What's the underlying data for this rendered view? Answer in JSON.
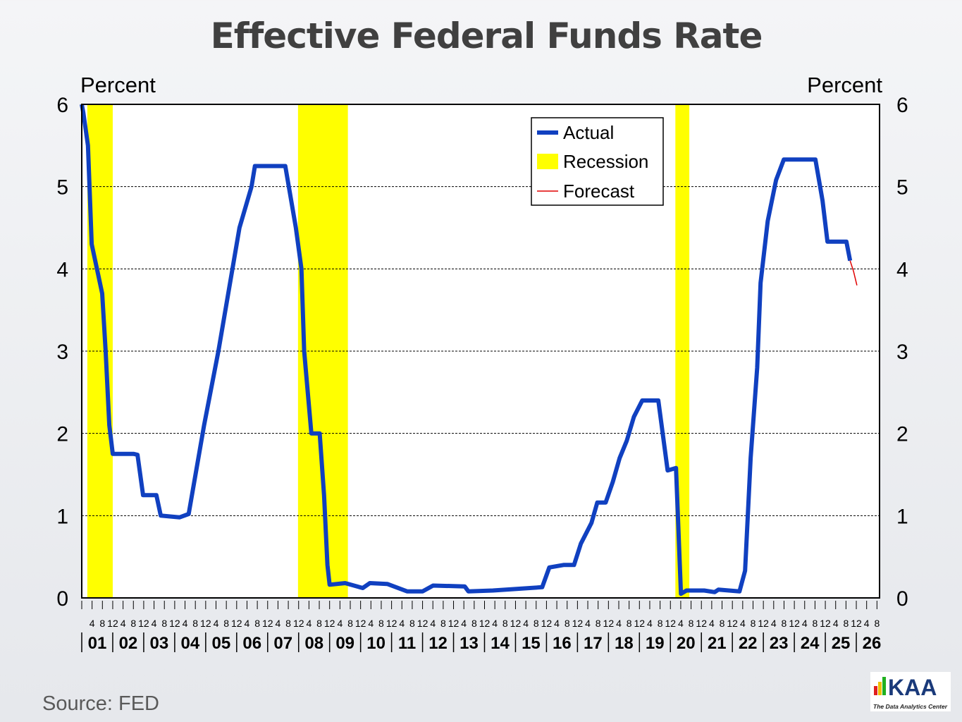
{
  "chart_data": {
    "type": "line",
    "title": "Effective Federal Funds Rate",
    "ylabel_left": "Percent",
    "ylabel_right": "Percent",
    "ylim": [
      0,
      6
    ],
    "yticks": [
      0,
      1,
      2,
      3,
      4,
      5,
      6
    ],
    "xlim": [
      2001.0,
      2026.75
    ],
    "month_ticks": [
      "4",
      "8",
      "12"
    ],
    "year_labels": [
      "01",
      "02",
      "03",
      "04",
      "05",
      "06",
      "07",
      "08",
      "09",
      "10",
      "11",
      "12",
      "13",
      "14",
      "15",
      "16",
      "17",
      "18",
      "19",
      "20",
      "21",
      "22",
      "23",
      "24",
      "25",
      "26"
    ],
    "grid": "horizontal dashed",
    "legend": {
      "placement": "top-center",
      "entries": [
        "Actual",
        "Recession",
        "Forecast"
      ]
    },
    "colors": {
      "actual": "#1040c0",
      "recession": "#ffff00",
      "forecast": "#e00000"
    },
    "recessions": [
      [
        2001.18,
        2002.0
      ],
      [
        2007.98,
        2009.59
      ],
      [
        2020.16,
        2020.61
      ]
    ],
    "actual": [
      [
        2001.0,
        6.0
      ],
      [
        2001.05,
        5.9
      ],
      [
        2001.2,
        5.5
      ],
      [
        2001.32,
        4.3
      ],
      [
        2001.66,
        3.7
      ],
      [
        2001.77,
        3.0
      ],
      [
        2001.89,
        2.1
      ],
      [
        2002.0,
        1.75
      ],
      [
        2002.68,
        1.75
      ],
      [
        2002.8,
        1.74
      ],
      [
        2002.98,
        1.25
      ],
      [
        2003.41,
        1.25
      ],
      [
        2003.55,
        1.0
      ],
      [
        2004.16,
        0.98
      ],
      [
        2004.45,
        1.02
      ],
      [
        2004.95,
        2.1
      ],
      [
        2005.41,
        3.0
      ],
      [
        2006.09,
        4.5
      ],
      [
        2006.48,
        5.0
      ],
      [
        2006.59,
        5.25
      ],
      [
        2007.57,
        5.25
      ],
      [
        2007.91,
        4.5
      ],
      [
        2008.09,
        4.0
      ],
      [
        2008.18,
        3.0
      ],
      [
        2008.41,
        2.0
      ],
      [
        2008.68,
        2.0
      ],
      [
        2008.82,
        1.25
      ],
      [
        2008.93,
        0.4
      ],
      [
        2009.0,
        0.16
      ],
      [
        2009.5,
        0.18
      ],
      [
        2010.07,
        0.12
      ],
      [
        2010.3,
        0.18
      ],
      [
        2010.86,
        0.17
      ],
      [
        2011.5,
        0.08
      ],
      [
        2012.0,
        0.08
      ],
      [
        2012.34,
        0.15
      ],
      [
        2013.36,
        0.14
      ],
      [
        2013.48,
        0.08
      ],
      [
        2014.27,
        0.09
      ],
      [
        2015.86,
        0.13
      ],
      [
        2016.09,
        0.37
      ],
      [
        2016.55,
        0.4
      ],
      [
        2016.89,
        0.4
      ],
      [
        2017.11,
        0.66
      ],
      [
        2017.45,
        0.91
      ],
      [
        2017.64,
        1.16
      ],
      [
        2017.91,
        1.16
      ],
      [
        2018.14,
        1.41
      ],
      [
        2018.36,
        1.7
      ],
      [
        2018.59,
        1.91
      ],
      [
        2018.82,
        2.2
      ],
      [
        2019.09,
        2.4
      ],
      [
        2019.61,
        2.4
      ],
      [
        2019.91,
        1.55
      ],
      [
        2020.18,
        1.58
      ],
      [
        2020.34,
        0.05
      ],
      [
        2020.52,
        0.09
      ],
      [
        2021.09,
        0.09
      ],
      [
        2021.43,
        0.07
      ],
      [
        2021.55,
        0.1
      ],
      [
        2022.23,
        0.08
      ],
      [
        2022.41,
        0.33
      ],
      [
        2022.59,
        1.7
      ],
      [
        2022.8,
        2.8
      ],
      [
        2022.91,
        3.83
      ],
      [
        2023.14,
        4.58
      ],
      [
        2023.41,
        5.08
      ],
      [
        2023.66,
        5.33
      ],
      [
        2024.68,
        5.33
      ],
      [
        2024.91,
        4.83
      ],
      [
        2025.07,
        4.33
      ],
      [
        2025.68,
        4.33
      ],
      [
        2025.8,
        4.1
      ]
    ],
    "forecast": [
      [
        2025.8,
        4.1
      ],
      [
        2025.91,
        3.97
      ],
      [
        2026.02,
        3.8
      ]
    ]
  },
  "source": "Source:  FED",
  "logo": {
    "text": "KAA",
    "tagline": "The Data Analytics Center"
  }
}
